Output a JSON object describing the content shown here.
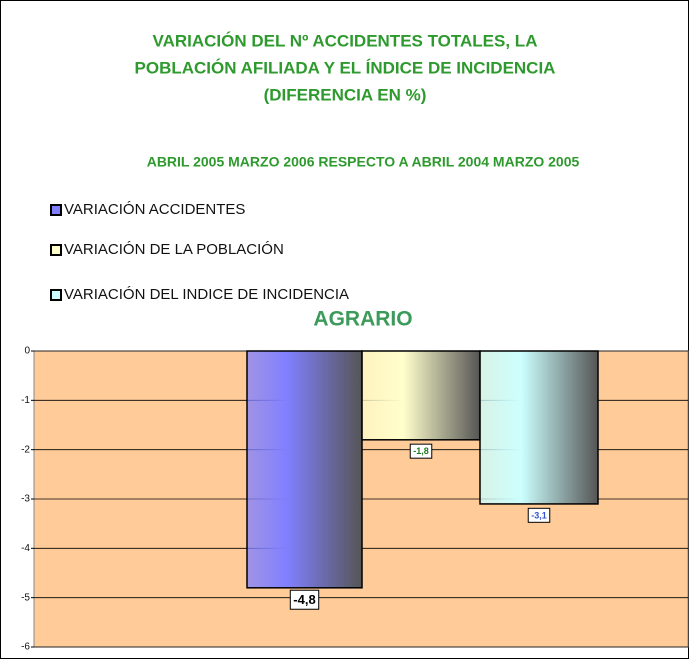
{
  "chart_data": {
    "type": "bar",
    "title": [
      "VARIACIÓN DEL Nº ACCIDENTES TOTALES, LA",
      "POBLACIÓN AFILIADA Y EL ÍNDICE DE INCIDENCIA",
      "(DIFERENCIA EN %)"
    ],
    "subtitle": "ABRIL 2005 MARZO 2006 RESPECTO A ABRIL 2004 MARZO 2005",
    "section": "AGRARIO",
    "categories": [
      null
    ],
    "series": [
      {
        "name": "VARIACIÓN ACCIDENTES",
        "color": "#8080ff",
        "values": [
          -4.8
        ],
        "value_labels": [
          "-4,8"
        ]
      },
      {
        "name": "VARIACIÓN DE LA POBLACIÓN",
        "color": "#ffffcc",
        "values": [
          -1.8
        ],
        "value_labels": [
          "-1,8"
        ]
      },
      {
        "name": "VARIACIÓN DEL INDICE DE INCIDENCIA",
        "color": "#ccffff",
        "values": [
          -3.1
        ],
        "value_labels": [
          "-3,1"
        ]
      }
    ],
    "ylim": [
      -6,
      0
    ],
    "yticks": [
      0,
      -1,
      -2,
      -3,
      -4,
      -5,
      -6
    ],
    "grid": true
  }
}
